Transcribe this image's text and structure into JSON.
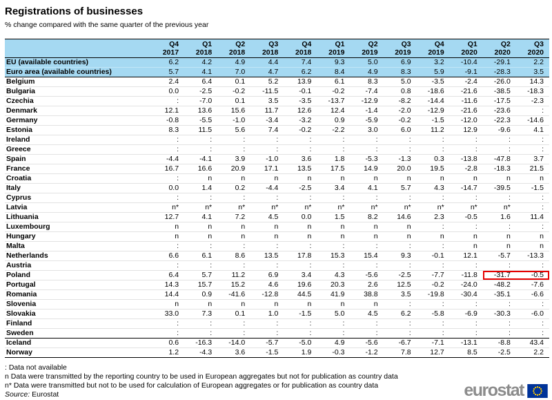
{
  "title": "Registrations of businesses",
  "subtitle": "% change compared with the same quarter of the previous year",
  "chart_data": {
    "type": "table",
    "header_fill": "#a5d9f2",
    "highlight_box_color": "#e60000",
    "columns": [
      "Q4 2017",
      "Q1 2018",
      "Q2 2018",
      "Q3 2018",
      "Q4 2018",
      "Q1 2019",
      "Q2 2019",
      "Q3 2019",
      "Q4 2019",
      "Q1 2020",
      "Q2 2020",
      "Q3 2020"
    ],
    "rows": [
      {
        "name": "EU (available countries)",
        "style": "eu",
        "values": [
          "6.2",
          "4.2",
          "4.9",
          "4.4",
          "7.4",
          "9.3",
          "5.0",
          "6.9",
          "3.2",
          "-10.4",
          "-29.1",
          "2.2"
        ]
      },
      {
        "name": "Euro area (available countries)",
        "style": "eu",
        "values": [
          "5.7",
          "4.1",
          "7.0",
          "4.7",
          "6.2",
          "8.4",
          "4.9",
          "8.3",
          "5.9",
          "-9.1",
          "-28.3",
          "3.5"
        ]
      },
      {
        "name": "Belgium",
        "separator_above": true,
        "values": [
          "2.4",
          "6.4",
          "0.1",
          "5.2",
          "13.9",
          "6.1",
          "8.3",
          "5.0",
          "-3.5",
          "-2.4",
          "-26.0",
          "14.3"
        ]
      },
      {
        "name": "Bulgaria",
        "values": [
          "0.0",
          "-2.5",
          "-0.2",
          "-11.5",
          "-0.1",
          "-0.2",
          "-7.4",
          "0.8",
          "-18.6",
          "-21.6",
          "-38.5",
          "-18.3"
        ]
      },
      {
        "name": "Czechia",
        "values": [
          ":",
          "-7.0",
          "0.1",
          "3.5",
          "-3.5",
          "-13.7",
          "-12.9",
          "-8.2",
          "-14.4",
          "-11.6",
          "-17.5",
          "-2.3"
        ]
      },
      {
        "name": "Denmark",
        "values": [
          "12.1",
          "13.6",
          "15.6",
          "11.7",
          "12.6",
          "12.4",
          "-1.4",
          "-2.0",
          "-12.9",
          "-21.6",
          "-23.6",
          ":"
        ]
      },
      {
        "name": "Germany",
        "values": [
          "-0.8",
          "-5.5",
          "-1.0",
          "-3.4",
          "-3.2",
          "0.9",
          "-5.9",
          "-0.2",
          "-1.5",
          "-12.0",
          "-22.3",
          "-14.6"
        ]
      },
      {
        "name": "Estonia",
        "values": [
          "8.3",
          "11.5",
          "5.6",
          "7.4",
          "-0.2",
          "-2.2",
          "3.0",
          "6.0",
          "11.2",
          "12.9",
          "-9.6",
          "4.1"
        ]
      },
      {
        "name": "Ireland",
        "values": [
          ":",
          ":",
          ":",
          ":",
          ":",
          ":",
          ":",
          ":",
          ":",
          ":",
          ":",
          ":"
        ]
      },
      {
        "name": "Greece",
        "values": [
          ":",
          ":",
          ":",
          ":",
          ":",
          ":",
          ":",
          ":",
          ":",
          ":",
          ":",
          ":"
        ]
      },
      {
        "name": "Spain",
        "values": [
          "-4.4",
          "-4.1",
          "3.9",
          "-1.0",
          "3.6",
          "1.8",
          "-5.3",
          "-1.3",
          "0.3",
          "-13.8",
          "-47.8",
          "3.7"
        ]
      },
      {
        "name": "France",
        "values": [
          "16.7",
          "16.6",
          "20.9",
          "17.1",
          "13.5",
          "17.5",
          "14.9",
          "20.0",
          "19.5",
          "-2.8",
          "-18.3",
          "21.5"
        ]
      },
      {
        "name": "Croatia",
        "values": [
          ":",
          "n",
          "n",
          "n",
          "n",
          "n",
          "n",
          "n",
          "n",
          "n",
          "n",
          "n"
        ]
      },
      {
        "name": "Italy",
        "values": [
          "0.0",
          "1.4",
          "0.2",
          "-4.4",
          "-2.5",
          "3.4",
          "4.1",
          "5.7",
          "4.3",
          "-14.7",
          "-39.5",
          "-1.5"
        ]
      },
      {
        "name": "Cyprus",
        "values": [
          ":",
          ":",
          ":",
          ":",
          ":",
          ":",
          ":",
          ":",
          ":",
          ":",
          ":",
          ":"
        ]
      },
      {
        "name": "Latvia",
        "values": [
          "n*",
          "n*",
          "n*",
          "n*",
          "n*",
          "n*",
          "n*",
          "n*",
          "n*",
          "n*",
          "n*",
          ":"
        ]
      },
      {
        "name": "Lithuania",
        "values": [
          "12.7",
          "4.1",
          "7.2",
          "4.5",
          "0.0",
          "1.5",
          "8.2",
          "14.6",
          "2.3",
          "-0.5",
          "1.6",
          "11.4"
        ]
      },
      {
        "name": "Luxembourg",
        "values": [
          "n",
          "n",
          "n",
          "n",
          "n",
          "n",
          "n",
          "n",
          ":",
          ":",
          ":",
          ":"
        ]
      },
      {
        "name": "Hungary",
        "values": [
          "n",
          "n",
          "n",
          "n",
          "n",
          "n",
          "n",
          "n",
          "n",
          "n",
          "n",
          "n"
        ]
      },
      {
        "name": "Malta",
        "values": [
          ":",
          ":",
          ":",
          ":",
          ":",
          ":",
          ":",
          ":",
          ":",
          "n",
          "n",
          "n"
        ]
      },
      {
        "name": "Netherlands",
        "values": [
          "6.6",
          "6.1",
          "8.6",
          "13.5",
          "17.8",
          "15.3",
          "15.4",
          "9.3",
          "-0.1",
          "12.1",
          "-5.7",
          "-13.3"
        ]
      },
      {
        "name": "Austria",
        "values": [
          ":",
          ":",
          ":",
          ":",
          ":",
          ":",
          ":",
          ":",
          ":",
          ":",
          ":",
          ":"
        ]
      },
      {
        "name": "Poland",
        "red_box": [
          10,
          11
        ],
        "values": [
          "6.4",
          "5.7",
          "11.2",
          "6.9",
          "3.4",
          "4.3",
          "-5.6",
          "-2.5",
          "-7.7",
          "-11.8",
          "-31.7",
          "-0.5"
        ]
      },
      {
        "name": "Portugal",
        "values": [
          "14.3",
          "15.7",
          "15.2",
          "4.6",
          "19.6",
          "20.3",
          "2.6",
          "12.5",
          "-0.2",
          "-24.0",
          "-48.2",
          "-7.6"
        ]
      },
      {
        "name": "Romania",
        "values": [
          "14.4",
          "0.9",
          "-41.6",
          "-12.8",
          "44.5",
          "41.9",
          "38.8",
          "3.5",
          "-19.8",
          "-30.4",
          "-35.1",
          "-6.6"
        ]
      },
      {
        "name": "Slovenia",
        "values": [
          "n",
          "n",
          "n",
          "n",
          "n",
          "n",
          "n",
          ":",
          ":",
          ":",
          ":",
          ":"
        ]
      },
      {
        "name": "Slovakia",
        "values": [
          "33.0",
          "7.3",
          "0.1",
          "1.0",
          "-1.5",
          "5.0",
          "4.5",
          "6.2",
          "-5.8",
          "-6.9",
          "-30.3",
          "-6.0"
        ]
      },
      {
        "name": "Finland",
        "values": [
          ":",
          ":",
          ":",
          ":",
          ":",
          ":",
          ":",
          ":",
          ":",
          ":",
          ":",
          ":"
        ]
      },
      {
        "name": "Sweden",
        "values": [
          ":",
          ":",
          ":",
          ":",
          ":",
          ":",
          ":",
          ":",
          ":",
          ":",
          ":",
          ":"
        ]
      },
      {
        "name": "Iceland",
        "separator_above": true,
        "values": [
          "0.6",
          "-16.3",
          "-14.0",
          "-5.7",
          "-5.0",
          "4.9",
          "-5.6",
          "-6.7",
          "-7.1",
          "-13.1",
          "-8.8",
          "43.4"
        ]
      },
      {
        "name": "Norway",
        "values": [
          "1.2",
          "-4.3",
          "3.6",
          "-1.5",
          "1.9",
          "-0.3",
          "-1.2",
          "7.8",
          "12.7",
          "8.5",
          "-2.5",
          "2.2"
        ]
      }
    ]
  },
  "footnotes": [
    ":  Data not available",
    "n Data were transmitted by the reporting country to be used in European aggregates but not for publication as country data",
    "n* Data were transmitted but not to be used for calculation of European aggregates or for publication as country data"
  ],
  "source": {
    "label": "Source:",
    "value": "Eurostat"
  },
  "logo": {
    "text": "eurostat",
    "flag_color": "#003399",
    "star_color": "#ffcc00",
    "text_color": "#8c8c8c"
  }
}
